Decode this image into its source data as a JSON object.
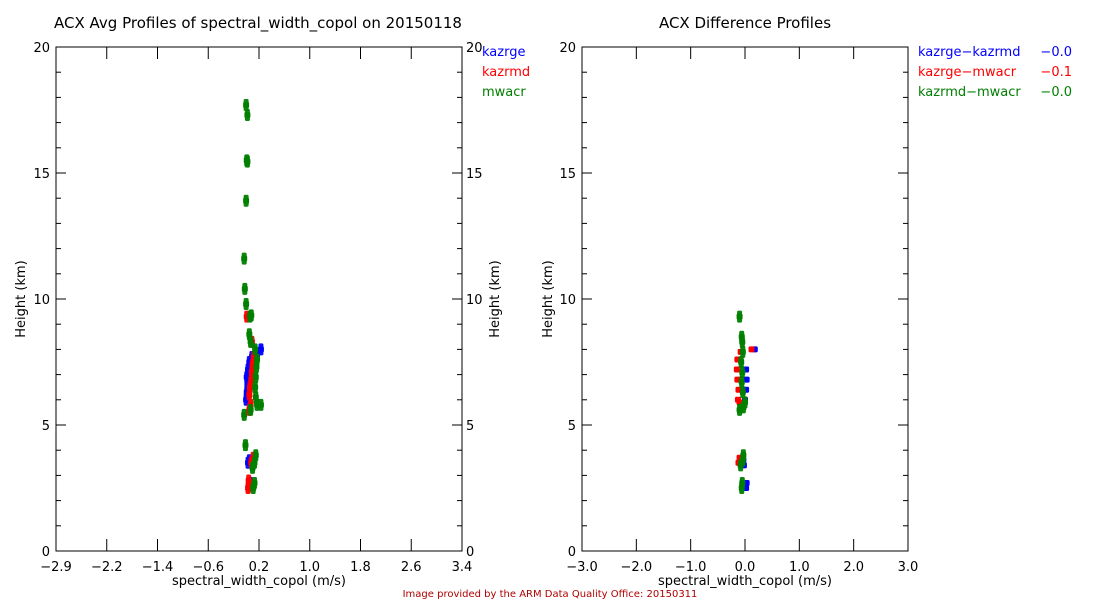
{
  "footer": "Image provided by the ARM Data Quality Office: 20150311",
  "chart_data": [
    {
      "type": "scatter",
      "title": "ACX Avg Profiles of spectral_width_copol on 20150118",
      "xlabel": "spectral_width_copol (m/s)",
      "ylabel": "Height (km)",
      "right_ylabel": "Height (km)",
      "xlim": [
        -2.9,
        3.4
      ],
      "ylim": [
        0,
        20
      ],
      "xticks": [
        "-2.9",
        "-2.2",
        "-1.4",
        "-0.6",
        "0.2",
        "1.0",
        "1.8",
        "2.6",
        "3.4"
      ],
      "yticks": [
        "0",
        "5",
        "10",
        "15",
        "20"
      ],
      "grid": false,
      "legend_position": "top-right",
      "series": [
        {
          "name": "kazrge",
          "color": "#0000ff",
          "points": [
            [
              0.1,
              2.6
            ],
            [
              0.12,
              2.7
            ],
            [
              0.08,
              3.5
            ],
            [
              0.1,
              3.6
            ],
            [
              0.05,
              6.0
            ],
            [
              0.06,
              6.3
            ],
            [
              0.07,
              6.6
            ],
            [
              0.06,
              6.9
            ],
            [
              0.08,
              7.2
            ],
            [
              0.1,
              7.5
            ],
            [
              0.14,
              7.7
            ],
            [
              0.22,
              7.8
            ],
            [
              0.28,
              8.0
            ],
            [
              0.12,
              7.0
            ],
            [
              0.09,
              6.5
            ]
          ]
        },
        {
          "name": "kazrmd",
          "color": "#ff0000",
          "points": [
            [
              0.08,
              2.5
            ],
            [
              0.1,
              2.6
            ],
            [
              0.09,
              2.8
            ],
            [
              0.13,
              3.5
            ],
            [
              0.16,
              3.7
            ],
            [
              0.1,
              5.6
            ],
            [
              0.12,
              5.8
            ],
            [
              0.1,
              6.2
            ],
            [
              0.11,
              6.5
            ],
            [
              0.13,
              6.8
            ],
            [
              0.14,
              7.1
            ],
            [
              0.15,
              7.4
            ],
            [
              0.17,
              7.7
            ],
            [
              0.14,
              8.3
            ],
            [
              0.06,
              9.3
            ]
          ]
        },
        {
          "name": "mwacr",
          "color": "#007f00",
          "points": [
            [
              0.16,
              2.5
            ],
            [
              0.18,
              2.7
            ],
            [
              0.15,
              3.3
            ],
            [
              0.18,
              3.5
            ],
            [
              0.2,
              3.8
            ],
            [
              0.04,
              4.2
            ],
            [
              0.02,
              5.4
            ],
            [
              0.12,
              5.6
            ],
            [
              0.22,
              5.8
            ],
            [
              0.28,
              5.8
            ],
            [
              0.2,
              6.1
            ],
            [
              0.19,
              6.5
            ],
            [
              0.2,
              6.9
            ],
            [
              0.21,
              7.3
            ],
            [
              0.22,
              7.6
            ],
            [
              0.19,
              8.0
            ],
            [
              0.12,
              8.3
            ],
            [
              0.1,
              8.6
            ],
            [
              0.11,
              9.3
            ],
            [
              0.13,
              9.35
            ],
            [
              0.05,
              9.8
            ],
            [
              0.03,
              10.4
            ],
            [
              0.02,
              11.6
            ],
            [
              0.05,
              13.9
            ],
            [
              0.06,
              15.5
            ],
            [
              0.07,
              15.45
            ],
            [
              0.07,
              17.3
            ],
            [
              0.05,
              17.7
            ]
          ]
        }
      ]
    },
    {
      "type": "scatter",
      "title": "ACX Difference Profiles",
      "xlabel": "spectral_width_copol (m/s)",
      "ylabel": "Height (km)",
      "xlim": [
        -3.0,
        3.0
      ],
      "ylim": [
        0,
        20
      ],
      "xticks": [
        "-3.0",
        "-2.0",
        "-1.0",
        "0.0",
        "1.0",
        "2.0",
        "3.0"
      ],
      "yticks": [
        "0",
        "5",
        "10",
        "15",
        "20"
      ],
      "grid": false,
      "legend_position": "outside-top-right",
      "series": [
        {
          "name": "kazrge-kazrmd",
          "mean_label": "-0.0",
          "color": "#0000ff",
          "points": [
            [
              0.02,
              2.5
            ],
            [
              0.03,
              2.7
            ],
            [
              -0.02,
              3.4
            ],
            [
              0.0,
              6.0
            ],
            [
              0.02,
              6.4
            ],
            [
              0.03,
              6.8
            ],
            [
              0.02,
              7.2
            ],
            [
              0.18,
              8.0
            ],
            [
              -0.03,
              3.6
            ]
          ]
        },
        {
          "name": "kazrge-mwacr",
          "mean_label": "-0.1",
          "color": "#ff0000",
          "points": [
            [
              -0.12,
              3.5
            ],
            [
              -0.1,
              3.7
            ],
            [
              -0.13,
              6.0
            ],
            [
              -0.12,
              6.4
            ],
            [
              -0.14,
              6.8
            ],
            [
              -0.15,
              7.2
            ],
            [
              -0.14,
              7.6
            ],
            [
              -0.08,
              7.9
            ],
            [
              0.12,
              8.0
            ],
            [
              -0.1,
              5.9
            ]
          ]
        },
        {
          "name": "kazrmd-mwacr",
          "mean_label": "-0.0",
          "color": "#007f00",
          "points": [
            [
              -0.06,
              2.5
            ],
            [
              -0.05,
              2.7
            ],
            [
              -0.08,
              3.4
            ],
            [
              -0.04,
              3.6
            ],
            [
              -0.03,
              3.8
            ],
            [
              -0.1,
              5.6
            ],
            [
              -0.03,
              5.7
            ],
            [
              0.0,
              5.9
            ],
            [
              -0.04,
              6.3
            ],
            [
              -0.06,
              6.7
            ],
            [
              -0.05,
              7.1
            ],
            [
              -0.07,
              7.5
            ],
            [
              -0.04,
              7.9
            ],
            [
              -0.05,
              8.3
            ],
            [
              -0.06,
              8.5
            ],
            [
              -0.1,
              9.3
            ]
          ]
        }
      ]
    }
  ]
}
